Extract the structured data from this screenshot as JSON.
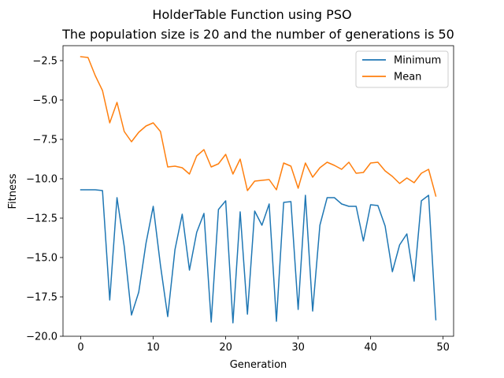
{
  "chart_data": {
    "type": "line",
    "title": "HolderTable Function using PSO",
    "subtitle": "The population size is 20 and the number of generations is 50",
    "xlabel": "Generation",
    "ylabel": "Fitness",
    "xlim": [
      -2.45,
      51.45
    ],
    "ylim": [
      -20.0,
      -1.55
    ],
    "xticks": [
      0,
      10,
      20,
      30,
      40,
      50
    ],
    "xtick_labels": [
      "0",
      "10",
      "20",
      "30",
      "40",
      "50"
    ],
    "yticks": [
      -20.0,
      -17.5,
      -15.0,
      -12.5,
      -10.0,
      -7.5,
      -5.0,
      -2.5
    ],
    "ytick_labels": [
      "−20.0",
      "−17.5",
      "−15.0",
      "−12.5",
      "−10.0",
      "−7.5",
      "−5.0",
      "−2.5"
    ],
    "grid": false,
    "legend_position": "top-right",
    "x": [
      0,
      1,
      2,
      3,
      4,
      5,
      6,
      7,
      8,
      9,
      10,
      11,
      12,
      13,
      14,
      15,
      16,
      17,
      18,
      19,
      20,
      21,
      22,
      23,
      24,
      25,
      26,
      27,
      28,
      29,
      30,
      31,
      32,
      33,
      34,
      35,
      36,
      37,
      38,
      39,
      40,
      41,
      42,
      43,
      44,
      45,
      46,
      47,
      48,
      49
    ],
    "series": [
      {
        "name": "Minimum",
        "color": "#1f77b4",
        "values": [
          -10.7,
          -10.7,
          -10.7,
          -10.75,
          -17.7,
          -11.2,
          -14.3,
          -18.65,
          -17.2,
          -14.1,
          -11.75,
          -15.5,
          -18.75,
          -14.5,
          -12.25,
          -15.8,
          -13.4,
          -12.2,
          -19.1,
          -11.95,
          -11.4,
          -19.15,
          -12.1,
          -18.6,
          -12.05,
          -12.95,
          -11.6,
          -19.05,
          -11.5,
          -11.45,
          -18.3,
          -11.05,
          -18.4,
          -12.95,
          -11.2,
          -11.2,
          -11.6,
          -11.75,
          -11.75,
          -13.95,
          -11.65,
          -11.7,
          -13.0,
          -15.9,
          -14.2,
          -13.5,
          -16.5,
          -11.4,
          -11.05,
          -18.95
        ]
      },
      {
        "name": "Mean",
        "color": "#ff7f0e",
        "values": [
          -2.25,
          -2.3,
          -3.45,
          -4.4,
          -6.45,
          -5.15,
          -7.0,
          -7.65,
          -7.05,
          -6.65,
          -6.45,
          -7.0,
          -9.25,
          -9.2,
          -9.3,
          -9.7,
          -8.55,
          -8.15,
          -9.25,
          -9.05,
          -8.45,
          -9.7,
          -8.75,
          -10.75,
          -10.15,
          -10.1,
          -10.05,
          -10.7,
          -9.0,
          -9.2,
          -10.6,
          -9.0,
          -9.9,
          -9.3,
          -8.95,
          -9.15,
          -9.4,
          -8.95,
          -9.65,
          -9.6,
          -9.0,
          -8.95,
          -9.5,
          -9.85,
          -10.3,
          -9.95,
          -10.25,
          -9.65,
          -9.4,
          -11.1
        ]
      }
    ]
  }
}
